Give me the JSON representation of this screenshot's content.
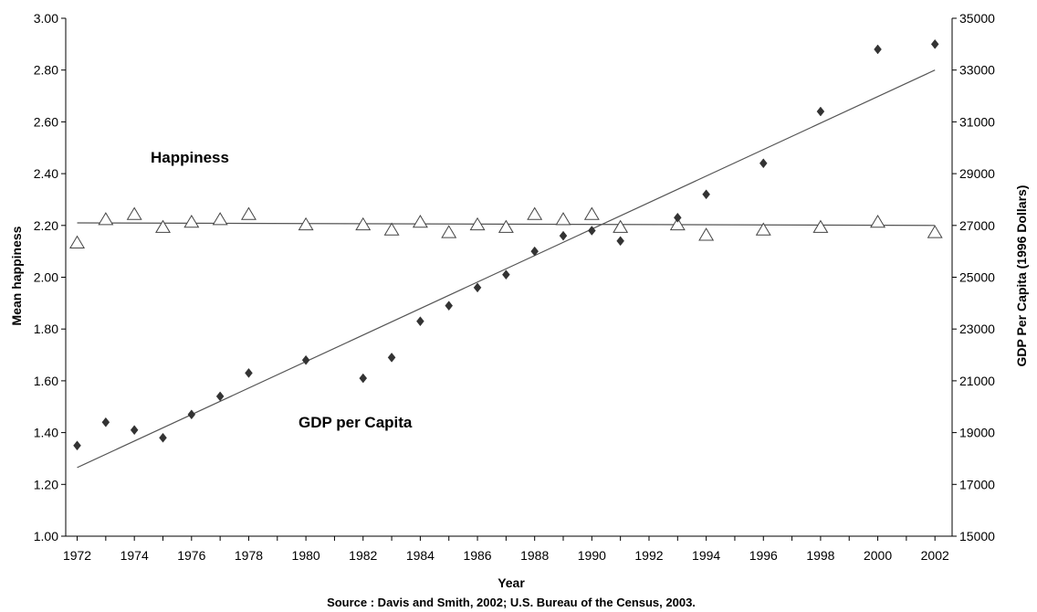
{
  "chart_data": {
    "type": "scatter",
    "xlabel": "Year",
    "ylabel_left": "Mean happiness",
    "ylabel_right": "GDP Per Capita (1996 Dollars)",
    "source": "Source : Davis and Smith, 2002; U.S. Bureau of the Census, 2003.",
    "xlim": [
      1971.6,
      2002.6
    ],
    "ylim_left": [
      1.0,
      3.0
    ],
    "ylim_right": [
      15000,
      35000
    ],
    "x_ticks": [
      1972,
      1974,
      1976,
      1978,
      1980,
      1982,
      1984,
      1986,
      1988,
      1990,
      1992,
      1994,
      1996,
      1998,
      2000,
      2002
    ],
    "left_ticks": [
      1.0,
      1.2,
      1.4,
      1.6,
      1.8,
      2.0,
      2.2,
      2.4,
      2.6,
      2.8,
      3.0
    ],
    "left_tick_labels": [
      "1.00",
      "1.20",
      "1.40",
      "1.60",
      "1.80",
      "2.00",
      "2.20",
      "2.40",
      "2.60",
      "2.80",
      "3.00"
    ],
    "right_ticks": [
      15000,
      17000,
      19000,
      21000,
      23000,
      25000,
      27000,
      29000,
      31000,
      33000,
      35000
    ],
    "grid": false,
    "annotations": [
      {
        "text": "Happiness",
        "near_series": "happiness"
      },
      {
        "text": "GDP per Capita",
        "near_series": "gdp"
      }
    ],
    "series": [
      {
        "name": "Happiness",
        "axis": "left",
        "marker": "open-triangle",
        "x": [
          1972,
          1973,
          1974,
          1975,
          1976,
          1977,
          1978,
          1980,
          1982,
          1983,
          1984,
          1985,
          1986,
          1987,
          1988,
          1989,
          1990,
          1991,
          1993,
          1994,
          1996,
          1998,
          2000,
          2002
        ],
        "y": [
          2.13,
          2.22,
          2.24,
          2.19,
          2.21,
          2.22,
          2.24,
          2.2,
          2.2,
          2.18,
          2.21,
          2.17,
          2.2,
          2.19,
          2.24,
          2.22,
          2.24,
          2.19,
          2.2,
          2.16,
          2.18,
          2.19,
          2.21,
          2.17
        ],
        "trend": {
          "x": [
            1972,
            2002
          ],
          "y": [
            2.21,
            2.2
          ]
        }
      },
      {
        "name": "GDP per Capita",
        "axis": "right",
        "marker": "filled-diamond",
        "x": [
          1972,
          1973,
          1974,
          1975,
          1976,
          1977,
          1978,
          1980,
          1982,
          1983,
          1984,
          1985,
          1986,
          1987,
          1988,
          1989,
          1990,
          1991,
          1993,
          1994,
          1996,
          1998,
          2000,
          2002
        ],
        "y": [
          18500,
          19400,
          19100,
          18800,
          19700,
          20400,
          21300,
          21800,
          21100,
          21900,
          23300,
          23900,
          24600,
          25100,
          26000,
          26600,
          26800,
          26400,
          27300,
          28200,
          29400,
          31400,
          33800,
          34000
        ],
        "trend": {
          "x": [
            1972,
            2002
          ],
          "y": [
            17650,
            33000
          ]
        }
      }
    ]
  }
}
